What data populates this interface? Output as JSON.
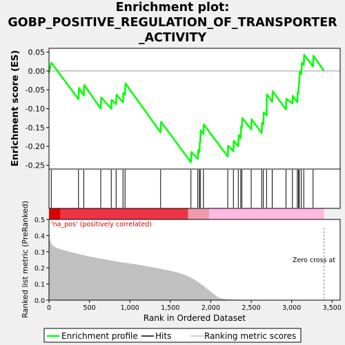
{
  "title_lines": [
    "Enrichment plot:",
    "GOBP_POSITIVE_REGULATION_OF_TRANSPORTER",
    "_ACTIVITY"
  ],
  "colors": {
    "enrichment_line": "#00ff00",
    "hit_line": "#000000",
    "ranking_fill": "#c0c0c0",
    "ranking_line": "#c0c0c0",
    "pos_bar_strong": "#dd0000",
    "pos_bar_mid": "#ee3344",
    "pos_bar_weak": "#f09ab0",
    "neg_bar_weak": "#ffb8e0",
    "zero_line": "#999999",
    "na_pos_text": "#cc0000"
  },
  "chart_data": [
    {
      "type": "line",
      "panel": "enrichment",
      "ylabel": "Enrichment score (ES)",
      "xlim": [
        0,
        3600
      ],
      "ylim": [
        -0.26,
        0.06
      ],
      "yticks": [
        0.05,
        0.0,
        -0.05,
        -0.1,
        -0.15,
        -0.2,
        -0.25
      ],
      "ytick_labels": [
        "0.05",
        "0.00",
        "-0.05",
        "-0.10",
        "-0.15",
        "-0.20",
        "-0.25"
      ],
      "series": [
        {
          "name": "Enrichment profile",
          "points": [
            [
              0,
              -0.005
            ],
            [
              28,
              0.022
            ],
            [
              365,
              -0.075
            ],
            [
              370,
              -0.045
            ],
            [
              430,
              -0.065
            ],
            [
              435,
              -0.037
            ],
            [
              640,
              -0.1
            ],
            [
              645,
              -0.07
            ],
            [
              770,
              -0.1
            ],
            [
              775,
              -0.077
            ],
            [
              830,
              -0.088
            ],
            [
              835,
              -0.063
            ],
            [
              915,
              -0.083
            ],
            [
              920,
              -0.058
            ],
            [
              940,
              -0.063
            ],
            [
              945,
              -0.033
            ],
            [
              1380,
              -0.163
            ],
            [
              1385,
              -0.135
            ],
            [
              1755,
              -0.242
            ],
            [
              1760,
              -0.215
            ],
            [
              1840,
              -0.233
            ],
            [
              1845,
              -0.21
            ],
            [
              1860,
              -0.215
            ],
            [
              1865,
              -0.19
            ],
            [
              1870,
              -0.19
            ],
            [
              1875,
              -0.157
            ],
            [
              1910,
              -0.167
            ],
            [
              1915,
              -0.142
            ],
            [
              2210,
              -0.227
            ],
            [
              2215,
              -0.198
            ],
            [
              2280,
              -0.213
            ],
            [
              2285,
              -0.185
            ],
            [
              2340,
              -0.2
            ],
            [
              2345,
              -0.17
            ],
            [
              2370,
              -0.178
            ],
            [
              2375,
              -0.148
            ],
            [
              2385,
              -0.15
            ],
            [
              2390,
              -0.125
            ],
            [
              2500,
              -0.155
            ],
            [
              2505,
              -0.128
            ],
            [
              2630,
              -0.165
            ],
            [
              2635,
              -0.137
            ],
            [
              2650,
              -0.142
            ],
            [
              2655,
              -0.11
            ],
            [
              2690,
              -0.118
            ],
            [
              2695,
              -0.062
            ],
            [
              2760,
              -0.082
            ],
            [
              2765,
              -0.054
            ],
            [
              2930,
              -0.102
            ],
            [
              2935,
              -0.074
            ],
            [
              3010,
              -0.086
            ],
            [
              3015,
              -0.066
            ],
            [
              3070,
              -0.083
            ],
            [
              3075,
              -0.057
            ],
            [
              3085,
              -0.059
            ],
            [
              3090,
              -0.03
            ],
            [
              3095,
              -0.03
            ],
            [
              3100,
              -0.002
            ],
            [
              3120,
              -0.008
            ],
            [
              3125,
              0.021
            ],
            [
              3150,
              0.016
            ],
            [
              3155,
              0.043
            ],
            [
              3265,
              0.012
            ],
            [
              3270,
              0.04
            ],
            [
              3400,
              0.0
            ]
          ]
        }
      ],
      "hits": [
        28,
        365,
        430,
        640,
        770,
        830,
        915,
        940,
        1380,
        1755,
        1840,
        1860,
        1870,
        1910,
        2210,
        2280,
        2340,
        2370,
        2385,
        2500,
        2630,
        2650,
        2690,
        2760,
        2930,
        3010,
        3070,
        3085,
        3095,
        3120,
        3150,
        3265
      ],
      "grid": false
    },
    {
      "type": "area",
      "panel": "ranking",
      "ylabel": "Ranked list metric (PreRanked)",
      "xlabel": "Rank in Ordered Dataset",
      "xlim": [
        0,
        3600
      ],
      "ylim": [
        0,
        0.5
      ],
      "xticks": [
        0,
        500,
        1000,
        1500,
        2000,
        2500,
        3000,
        3500
      ],
      "xtick_labels": [
        "0",
        "500",
        "1,000",
        "1,500",
        "2,000",
        "2,500",
        "3,000",
        "3,500"
      ],
      "yticks": [
        0.0,
        0.1,
        0.2,
        0.3,
        0.4,
        0.5
      ],
      "ytick_labels": [
        "0.0",
        "0.1",
        "0.2",
        "0.3",
        "0.4",
        "0.5"
      ],
      "series": [
        {
          "name": "Ranking metric scores",
          "points": [
            [
              0,
              0.41
            ],
            [
              10,
              0.37
            ],
            [
              30,
              0.345
            ],
            [
              60,
              0.33
            ],
            [
              100,
              0.32
            ],
            [
              200,
              0.305
            ],
            [
              300,
              0.292
            ],
            [
              400,
              0.28
            ],
            [
              500,
              0.268
            ],
            [
              700,
              0.25
            ],
            [
              900,
              0.232
            ],
            [
              1100,
              0.218
            ],
            [
              1300,
              0.2
            ],
            [
              1500,
              0.18
            ],
            [
              1600,
              0.168
            ],
            [
              1700,
              0.15
            ],
            [
              1800,
              0.125
            ],
            [
              1900,
              0.09
            ],
            [
              2000,
              0.05
            ],
            [
              2050,
              0.03
            ],
            [
              2100,
              0.012
            ],
            [
              2200,
              0.002
            ],
            [
              2400,
              0.0
            ],
            [
              3400,
              0.0
            ]
          ]
        }
      ],
      "annotations": [
        "'na_pos' (positively correlated)",
        "Zero cross at"
      ],
      "zero_cross": 3400
    }
  ],
  "legend": {
    "items": [
      "Enrichment profile",
      "Hits",
      "Ranking metric scores"
    ],
    "placement": "bottom"
  }
}
